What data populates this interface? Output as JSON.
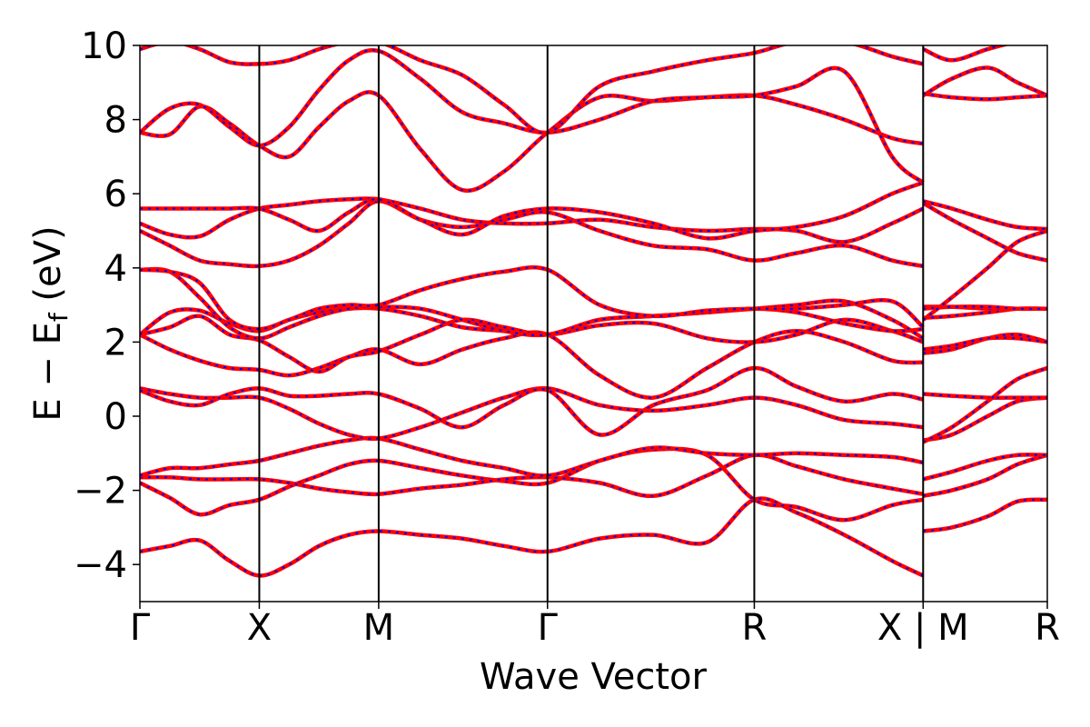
{
  "chart_data": {
    "type": "line",
    "title": "",
    "xlabel": "Wave Vector",
    "ylabel": "E − E_f (eV)",
    "ylabel_main": "E − E",
    "ylabel_sub": "f",
    "ylabel_unit": " (eV)",
    "ylim": [
      -5,
      10
    ],
    "yticks": [
      -4,
      -2,
      0,
      2,
      4,
      6,
      8,
      10
    ],
    "ytick_labels": [
      "−4",
      "−2",
      "0",
      "2",
      "4",
      "6",
      "8",
      "10"
    ],
    "xlim": [
      0,
      7.6
    ],
    "high_symmetry_points": [
      {
        "label": "Γ",
        "x": 0.0
      },
      {
        "label": "X",
        "x": 1.0
      },
      {
        "label": "M",
        "x": 2.0
      },
      {
        "label": "Γ",
        "x": 3.414
      },
      {
        "label": "R",
        "x": 5.146
      },
      {
        "label": "X | M",
        "x": 6.56
      },
      {
        "label": "R",
        "x": 7.6
      }
    ],
    "grid": false,
    "legend": "none",
    "line_style": {
      "base_color": "#ff0000",
      "overlay_color": "#0000ff",
      "overlay": "dashed"
    },
    "series": [
      {
        "x": [
          0,
          0.25,
          0.5,
          0.75,
          1.0,
          1.25,
          1.5,
          1.75,
          2.0,
          2.35,
          2.7,
          3.05,
          3.414,
          3.85,
          4.3,
          4.75,
          5.146,
          5.5,
          5.9,
          6.3,
          6.56
        ],
        "y": [
          -3.65,
          -3.5,
          -3.35,
          -3.9,
          -4.3,
          -4.0,
          -3.5,
          -3.2,
          -3.1,
          -3.2,
          -3.3,
          -3.5,
          -3.65,
          -3.3,
          -3.2,
          -3.4,
          -2.25,
          -2.6,
          -3.2,
          -3.9,
          -4.3
        ]
      },
      {
        "x": [
          6.56,
          6.8,
          7.1,
          7.35,
          7.6
        ],
        "y": [
          -3.1,
          -3.0,
          -2.7,
          -2.3,
          -2.25
        ]
      },
      {
        "x": [
          0,
          0.25,
          0.5,
          0.75,
          1.0,
          1.25,
          1.5,
          1.75,
          2.0,
          2.35,
          2.7,
          3.05,
          3.414,
          3.85,
          4.3,
          4.75,
          5.146,
          5.5,
          5.9,
          6.3,
          6.56
        ],
        "y": [
          -1.8,
          -2.2,
          -2.65,
          -2.4,
          -2.25,
          -1.9,
          -1.6,
          -1.3,
          -1.2,
          -1.4,
          -1.6,
          -1.75,
          -1.8,
          -1.2,
          -0.9,
          -1.05,
          -2.25,
          -2.45,
          -2.8,
          -2.4,
          -2.25
        ]
      },
      {
        "x": [
          6.56,
          6.8,
          7.1,
          7.35,
          7.6
        ],
        "y": [
          -2.15,
          -2.0,
          -1.7,
          -1.3,
          -1.05
        ]
      },
      {
        "x": [
          0,
          0.25,
          0.5,
          0.75,
          1.0,
          1.25,
          1.5,
          1.75,
          2.0,
          2.35,
          2.7,
          3.05,
          3.414,
          3.85,
          4.3,
          4.75,
          5.146,
          5.5,
          5.9,
          6.3,
          6.56
        ],
        "y": [
          -1.65,
          -1.65,
          -1.7,
          -1.7,
          -1.7,
          -1.8,
          -1.95,
          -2.05,
          -2.1,
          -1.95,
          -1.85,
          -1.7,
          -1.65,
          -1.8,
          -2.15,
          -1.6,
          -1.05,
          -1.35,
          -1.7,
          -1.95,
          -2.1
        ]
      },
      {
        "x": [
          6.56,
          6.8,
          7.1,
          7.35,
          7.6
        ],
        "y": [
          -1.7,
          -1.5,
          -1.2,
          -1.05,
          -1.05
        ]
      },
      {
        "x": [
          0,
          0.25,
          0.5,
          0.75,
          1.0,
          1.25,
          1.5,
          1.75,
          2.0,
          2.35,
          2.7,
          3.05,
          3.414,
          3.85,
          4.3,
          4.75,
          5.146,
          5.5,
          5.9,
          6.3,
          6.56
        ],
        "y": [
          -1.6,
          -1.4,
          -1.4,
          -1.3,
          -1.2,
          -1.0,
          -0.8,
          -0.65,
          -0.6,
          -0.9,
          -1.2,
          -1.4,
          -1.6,
          -1.2,
          -0.85,
          -1.0,
          -1.05,
          -1.0,
          -1.05,
          -1.1,
          -1.25
        ]
      },
      {
        "x": [
          6.56,
          6.8,
          7.1,
          7.35,
          7.6
        ],
        "y": [
          -0.65,
          -0.5,
          0.0,
          0.4,
          0.5
        ]
      },
      {
        "x": [
          0,
          0.25,
          0.5,
          0.75,
          1.0,
          1.25,
          1.5,
          1.75,
          2.0,
          2.35,
          2.7,
          3.05,
          3.414,
          3.85,
          4.3,
          4.75,
          5.146,
          5.5,
          5.9,
          6.3,
          6.56
        ],
        "y": [
          0.75,
          0.6,
          0.5,
          0.5,
          0.5,
          0.2,
          -0.2,
          -0.5,
          -0.6,
          -0.3,
          0.1,
          0.5,
          0.75,
          0.3,
          0.15,
          0.3,
          0.5,
          0.3,
          -0.1,
          -0.2,
          -0.3
        ]
      },
      {
        "x": [
          6.56,
          6.8,
          7.1,
          7.35,
          7.6
        ],
        "y": [
          0.6,
          0.55,
          0.5,
          0.5,
          0.5
        ]
      },
      {
        "x": [
          0,
          0.25,
          0.5,
          0.75,
          1.0,
          1.25,
          1.5,
          1.75,
          2.0,
          2.35,
          2.7,
          3.05,
          3.414,
          3.85,
          4.3,
          4.75,
          5.146,
          5.5,
          5.9,
          6.3,
          6.56
        ],
        "y": [
          0.7,
          0.4,
          0.3,
          0.6,
          0.75,
          0.55,
          0.55,
          0.6,
          0.6,
          0.2,
          -0.3,
          0.3,
          0.7,
          -0.5,
          0.3,
          0.7,
          1.3,
          0.8,
          0.4,
          0.6,
          0.45
        ]
      },
      {
        "x": [
          6.56,
          6.8,
          7.1,
          7.35,
          7.6
        ],
        "y": [
          -0.7,
          -0.3,
          0.4,
          1.0,
          1.3
        ]
      },
      {
        "x": [
          0,
          0.25,
          0.5,
          0.75,
          1.0,
          1.25,
          1.5,
          1.75,
          2.0,
          2.35,
          2.7,
          3.05,
          3.414,
          3.85,
          4.3,
          4.75,
          5.146,
          5.5,
          5.9,
          6.3,
          6.56
        ],
        "y": [
          2.2,
          1.8,
          1.5,
          1.3,
          1.25,
          1.1,
          1.3,
          1.6,
          1.8,
          1.4,
          1.8,
          2.1,
          2.2,
          1.1,
          0.5,
          1.3,
          2.0,
          2.3,
          2.0,
          1.5,
          1.45
        ]
      },
      {
        "x": [
          6.56,
          6.8,
          7.1,
          7.35,
          7.6
        ],
        "y": [
          1.7,
          1.8,
          2.1,
          2.2,
          2.0
        ]
      },
      {
        "x": [
          0,
          0.25,
          0.5,
          0.75,
          1.0,
          1.25,
          1.5,
          1.75,
          2.0,
          2.35,
          2.7,
          3.05,
          3.414,
          3.85,
          4.3,
          4.75,
          5.146,
          5.5,
          5.9,
          6.3,
          6.56
        ],
        "y": [
          2.2,
          2.4,
          2.7,
          2.2,
          2.05,
          1.6,
          1.2,
          1.6,
          1.75,
          2.2,
          2.6,
          2.4,
          2.2,
          2.45,
          2.5,
          2.1,
          2.0,
          2.2,
          2.6,
          2.3,
          2.0
        ]
      },
      {
        "x": [
          6.56,
          6.8,
          7.1,
          7.35,
          7.6
        ],
        "y": [
          1.8,
          1.9,
          2.1,
          2.1,
          2.0
        ]
      },
      {
        "x": [
          0,
          0.25,
          0.5,
          0.75,
          1.0,
          1.25,
          1.5,
          1.75,
          2.0,
          2.35,
          2.7,
          3.05,
          3.414,
          3.85,
          4.3,
          4.75,
          5.146,
          5.5,
          5.9,
          6.3,
          6.56
        ],
        "y": [
          2.2,
          2.8,
          2.85,
          2.5,
          2.3,
          2.6,
          2.8,
          2.9,
          2.9,
          2.7,
          2.4,
          2.3,
          2.2,
          2.6,
          2.7,
          2.8,
          2.9,
          2.8,
          2.5,
          2.3,
          2.35
        ]
      },
      {
        "x": [
          6.56,
          6.8,
          7.1,
          7.35,
          7.6
        ],
        "y": [
          2.65,
          2.7,
          2.8,
          2.9,
          2.9
        ]
      },
      {
        "x": [
          0,
          0.25,
          0.5,
          0.75,
          1.0,
          1.25,
          1.5,
          1.75,
          2.0,
          2.35,
          2.7,
          3.05,
          3.414,
          3.85,
          4.3,
          4.75,
          5.146,
          5.5,
          5.9,
          6.3,
          6.56
        ],
        "y": [
          3.95,
          3.9,
          3.2,
          2.4,
          2.1,
          2.4,
          2.7,
          2.9,
          2.95,
          2.9,
          2.6,
          2.3,
          2.2,
          2.6,
          2.7,
          2.8,
          2.9,
          3.0,
          3.1,
          2.6,
          2.1
        ]
      },
      {
        "x": [
          6.56,
          6.8,
          7.1,
          7.35,
          7.6
        ],
        "y": [
          2.95,
          2.95,
          2.9,
          2.9,
          2.9
        ]
      },
      {
        "x": [
          0,
          0.25,
          0.5,
          0.75,
          1.0,
          1.25,
          1.5,
          1.75,
          2.0,
          2.35,
          2.7,
          3.05,
          3.414,
          3.85,
          4.3,
          4.75,
          5.146,
          5.5,
          5.9,
          6.3,
          6.56
        ],
        "y": [
          3.95,
          3.9,
          3.6,
          2.6,
          2.35,
          2.6,
          2.9,
          3.0,
          3.0,
          3.4,
          3.7,
          3.9,
          3.95,
          3.0,
          2.7,
          2.85,
          2.9,
          2.9,
          3.0,
          3.1,
          2.4
        ]
      },
      {
        "x": [
          6.56,
          6.8,
          7.1,
          7.35,
          7.6
        ],
        "y": [
          2.9,
          2.95,
          2.95,
          2.9,
          2.9
        ]
      },
      {
        "x": [
          0,
          0.25,
          0.5,
          0.75,
          1.0,
          1.25,
          1.5,
          1.75,
          2.0,
          2.35,
          2.7,
          3.05,
          3.414,
          3.85,
          4.3,
          4.75,
          5.146,
          5.5,
          5.9,
          6.3,
          6.56
        ],
        "y": [
          5.0,
          4.6,
          4.2,
          4.1,
          4.05,
          4.2,
          4.6,
          5.2,
          5.8,
          5.3,
          5.1,
          5.3,
          5.5,
          5.0,
          4.6,
          4.5,
          4.2,
          4.4,
          4.6,
          4.2,
          4.05
        ]
      },
      {
        "x": [
          6.56,
          6.8,
          7.1,
          7.35,
          7.6
        ],
        "y": [
          5.75,
          5.3,
          4.8,
          4.4,
          4.2
        ]
      },
      {
        "x": [
          0,
          0.25,
          0.5,
          0.75,
          1.0,
          1.25,
          1.5,
          1.75,
          2.0,
          2.35,
          2.7,
          3.05,
          3.414,
          3.85,
          4.3,
          4.75,
          5.146,
          5.5,
          5.9,
          6.3,
          6.56
        ],
        "y": [
          5.2,
          4.9,
          4.85,
          5.3,
          5.6,
          5.7,
          5.8,
          5.85,
          5.85,
          5.6,
          5.3,
          5.2,
          5.2,
          5.3,
          5.1,
          5.0,
          5.05,
          5.0,
          4.7,
          5.2,
          5.6
        ]
      },
      {
        "x": [
          6.56,
          6.8,
          7.1,
          7.35,
          7.6
        ],
        "y": [
          5.8,
          5.6,
          5.3,
          5.1,
          5.05
        ]
      },
      {
        "x": [
          0,
          0.25,
          0.5,
          0.75,
          1.0,
          1.25,
          1.5,
          1.75,
          2.0,
          2.35,
          2.7,
          3.05,
          3.414,
          3.85,
          4.3,
          4.75,
          5.146,
          5.5,
          5.9,
          6.3,
          6.56
        ],
        "y": [
          5.6,
          5.6,
          5.6,
          5.6,
          5.6,
          5.3,
          5.0,
          5.5,
          5.85,
          5.3,
          4.9,
          5.4,
          5.6,
          5.5,
          5.2,
          4.8,
          5.0,
          5.1,
          5.4,
          6.0,
          6.3
        ]
      },
      {
        "x": [
          6.56,
          6.8,
          7.1,
          7.35,
          7.6
        ],
        "y": [
          2.6,
          3.2,
          4.0,
          4.7,
          5.0
        ]
      },
      {
        "x": [
          0,
          0.25,
          0.5,
          0.75,
          1.0,
          1.25,
          1.5,
          1.75,
          2.0,
          2.35,
          2.7,
          3.05,
          3.414,
          3.85,
          4.3,
          4.75,
          5.146,
          5.5,
          5.9,
          6.3,
          6.56
        ],
        "y": [
          7.65,
          7.6,
          8.35,
          7.9,
          7.3,
          7.0,
          7.8,
          8.5,
          8.65,
          7.2,
          6.1,
          6.6,
          7.65,
          8.6,
          8.5,
          8.6,
          8.65,
          8.4,
          8.0,
          7.5,
          7.35
        ]
      },
      {
        "x": [
          6.56,
          6.8,
          7.1,
          7.35,
          7.6
        ],
        "y": [
          8.65,
          9.1,
          9.4,
          9.0,
          8.65
        ]
      },
      {
        "x": [
          0,
          0.25,
          0.5,
          0.75,
          1.0,
          1.25,
          1.5,
          1.75,
          2.0,
          2.35,
          2.7,
          3.05,
          3.414,
          3.85,
          4.3,
          4.75,
          5.146,
          5.5,
          5.9,
          6.3,
          6.56
        ],
        "y": [
          7.65,
          8.3,
          8.4,
          7.8,
          7.3,
          7.8,
          8.8,
          9.6,
          9.85,
          9.1,
          8.2,
          7.9,
          7.65,
          8.0,
          8.5,
          8.6,
          8.65,
          8.9,
          9.3,
          7.0,
          6.3
        ]
      },
      {
        "x": [
          6.56,
          6.8,
          7.1,
          7.35,
          7.6
        ],
        "y": [
          8.7,
          8.6,
          8.55,
          8.6,
          8.65
        ]
      },
      {
        "x": [
          0,
          0.25,
          0.5,
          0.75,
          1.0,
          1.25,
          1.5,
          1.75,
          2.0,
          2.35,
          2.7,
          3.05,
          3.414,
          3.85,
          4.3,
          4.75,
          5.146,
          5.5,
          5.9,
          6.3,
          6.56
        ],
        "y": [
          9.9,
          10.1,
          9.9,
          9.55,
          9.5,
          9.6,
          9.9,
          10.1,
          10.1,
          9.6,
          9.2,
          8.4,
          7.65,
          8.9,
          9.3,
          9.6,
          9.8,
          10.1,
          10.1,
          9.7,
          9.5
        ]
      },
      {
        "x": [
          6.56,
          6.8,
          7.1,
          7.35,
          7.6
        ],
        "y": [
          9.9,
          9.6,
          9.9,
          10.1,
          10.2
        ]
      }
    ]
  }
}
